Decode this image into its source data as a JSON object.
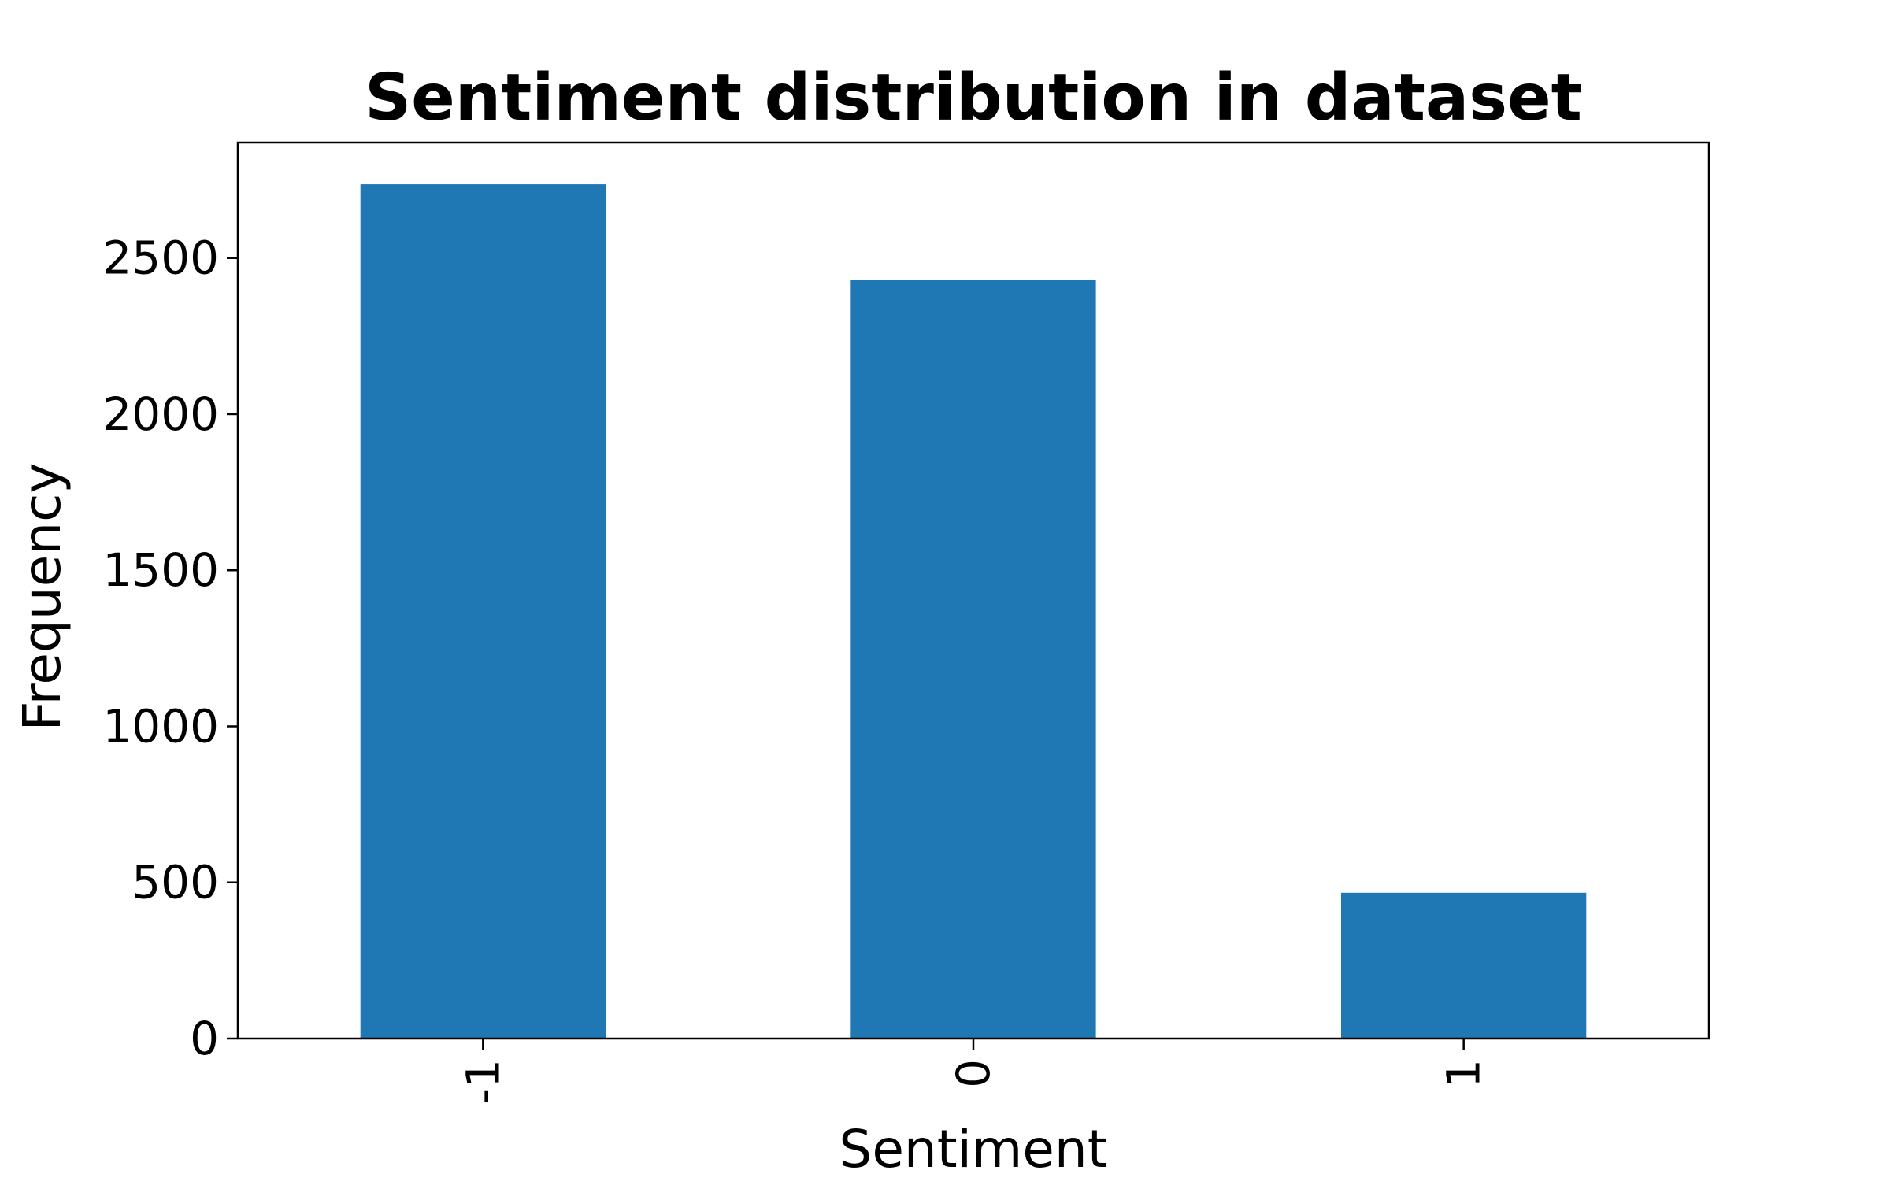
{
  "chart_data": {
    "type": "bar",
    "title": "Sentiment distribution in dataset",
    "xlabel": "Sentiment",
    "ylabel": "Frequency",
    "categories": [
      "-1",
      "0",
      "1"
    ],
    "values": [
      2736,
      2430,
      467
    ],
    "ylim": [
      0,
      2870
    ],
    "yticks": [
      0,
      500,
      1000,
      1500,
      2000,
      2500
    ],
    "grid": false,
    "legend": "none",
    "bar_color": "#1f77b4",
    "x_tick_rotation": "vertical"
  }
}
